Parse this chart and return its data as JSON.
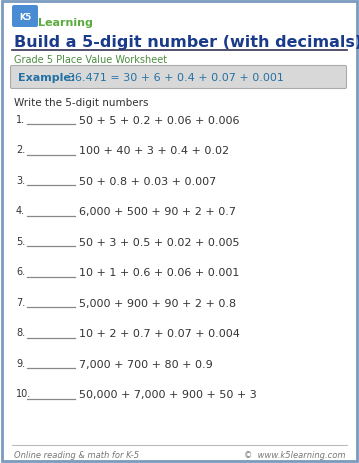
{
  "title": "Build a 5-digit number (with decimals)",
  "subtitle": "Grade 5 Place Value Worksheet",
  "example_label": "Example:   ",
  "example_text": "36.471 = 30 + 6 + 0.4 + 0.07 + 0.001",
  "instruction": "Write the 5-digit numbers",
  "problems": [
    "50 + 5 + 0.2 + 0.06 + 0.006",
    "100 + 40 + 3 + 0.4 + 0.02",
    "50 + 0.8 + 0.03 + 0.007",
    "6,000 + 500 + 90 + 2 + 0.7",
    "50 + 3 + 0.5 + 0.02 + 0.005",
    "10 + 1 + 0.6 + 0.06 + 0.001",
    "5,000 + 900 + 90 + 2 + 0.8",
    "10 + 2 + 0.7 + 0.07 + 0.004",
    "7,000 + 700 + 80 + 0.9",
    "50,000 + 7,000 + 900 + 50 + 3"
  ],
  "footer_left": "Online reading & math for K-5",
  "footer_right": "©  www.k5learning.com",
  "title_color": "#1a3a8a",
  "subtitle_color": "#4a8c3f",
  "example_color": "#2472a4",
  "example_box_bg": "#d8d8d8",
  "example_box_border": "#aaaaaa",
  "border_color": "#7a9abf",
  "text_color": "#333333",
  "footer_color": "#777777",
  "background_color": "#ffffff",
  "logo_green": "#5aac3e",
  "logo_blue": "#1a5ca8",
  "line_color": "#888888"
}
